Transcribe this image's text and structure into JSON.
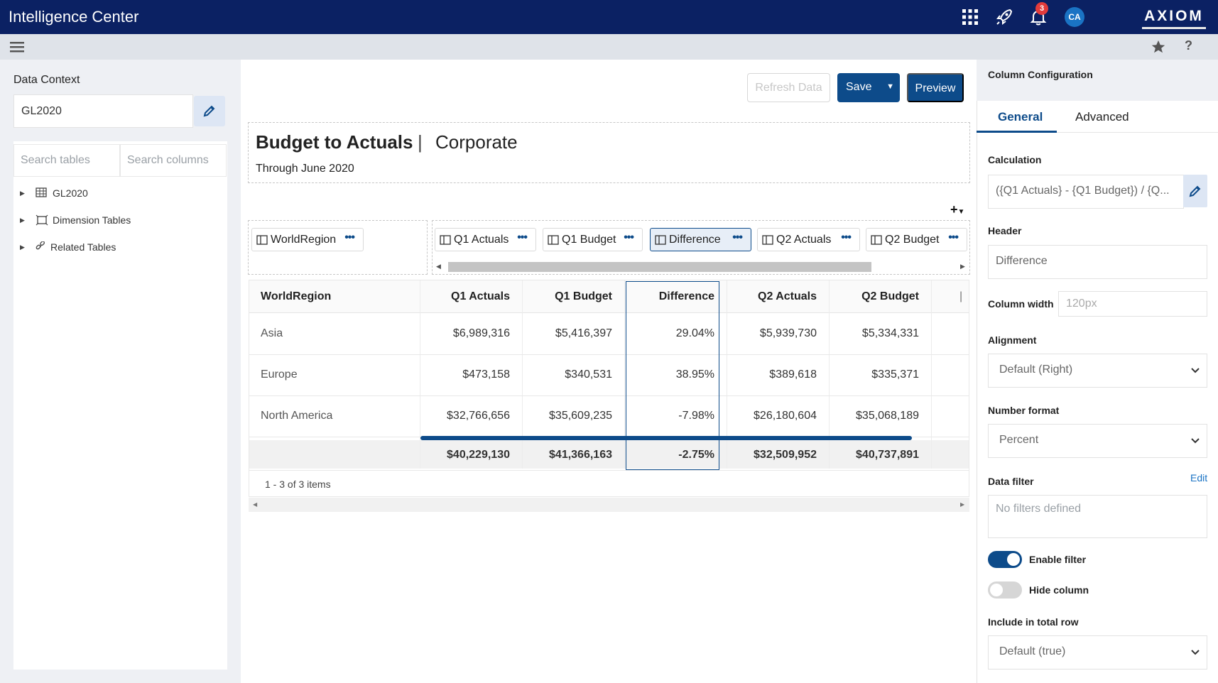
{
  "app": {
    "title": "Intelligence Center",
    "notification_count": "3",
    "user_initials": "CA",
    "brand": "AXIOM"
  },
  "left_panel": {
    "label": "Data Context",
    "context_value": "GL2020",
    "search_tables_placeholder": "Search tables",
    "search_columns_placeholder": "Search columns",
    "tree": [
      {
        "label": "GL2020",
        "icon": "table-icon"
      },
      {
        "label": "Dimension Tables",
        "icon": "dimension-icon"
      },
      {
        "label": "Related Tables",
        "icon": "link-icon"
      }
    ]
  },
  "toolbar": {
    "refresh_label": "Refresh Data",
    "save_label": "Save",
    "preview_label": "Preview"
  },
  "report": {
    "title": "Budget to Actuals",
    "separator": "|",
    "subtitle": "Corporate",
    "date": "Through June 2020"
  },
  "dropzones": {
    "rows": [
      {
        "label": "WorldRegion"
      }
    ],
    "columns": [
      {
        "label": "Q1 Actuals"
      },
      {
        "label": "Q1 Budget"
      },
      {
        "label": "Difference"
      },
      {
        "label": "Q2 Actuals"
      },
      {
        "label": "Q2 Budget"
      }
    ]
  },
  "grid": {
    "headers": [
      "WorldRegion",
      "Q1 Actuals",
      "Q1 Budget",
      "Difference",
      "Q2 Actuals",
      "Q2 Budget"
    ],
    "rows": [
      [
        "Asia",
        "$6,989,316",
        "$5,416,397",
        "29.04%",
        "$5,939,730",
        "$5,334,331"
      ],
      [
        "Europe",
        "$473,158",
        "$340,531",
        "38.95%",
        "$389,618",
        "$335,371"
      ],
      [
        "North America",
        "$32,766,656",
        "$35,609,235",
        "-7.98%",
        "$26,180,604",
        "$35,068,189"
      ]
    ],
    "totals": [
      "",
      "$40,229,130",
      "$41,366,163",
      "-2.75%",
      "$32,509,952",
      "$40,737,891"
    ],
    "pager": "1 - 3 of 3 items"
  },
  "config": {
    "header": "Column Configuration",
    "tabs": [
      "General",
      "Advanced"
    ],
    "calculation_label": "Calculation",
    "calculation_value": "({Q1 Actuals} - {Q1 Budget}) / {Q...",
    "header_label": "Header",
    "header_value": "Difference",
    "width_label": "Column width",
    "width_placeholder": "120px",
    "alignment_label": "Alignment",
    "alignment_value": "Default (Right)",
    "number_format_label": "Number format",
    "number_format_value": "Percent",
    "data_filter_label": "Data filter",
    "data_filter_edit": "Edit",
    "data_filter_placeholder": "No filters defined",
    "enable_filter_label": "Enable filter",
    "enable_filter_on": true,
    "hide_column_label": "Hide column",
    "hide_column_on": false,
    "include_total_label": "Include in total row",
    "include_total_value": "Default (true)"
  }
}
